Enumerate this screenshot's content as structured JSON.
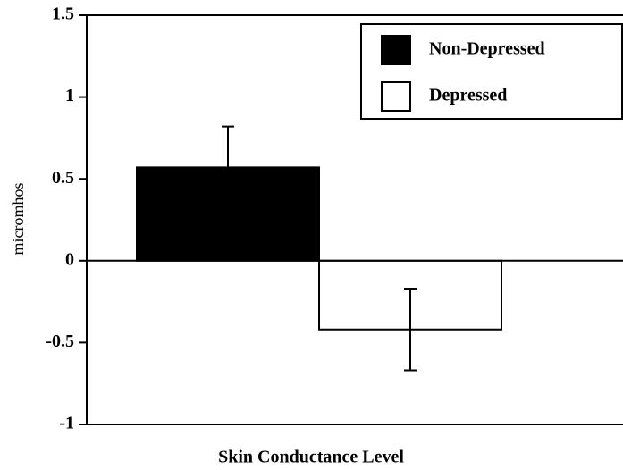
{
  "chart_data": {
    "type": "bar",
    "xlabel": "Skin Conductance Level",
    "ylabel": "micromhos",
    "categories": [
      null
    ],
    "series": [
      {
        "name": "Non-Depressed",
        "color": "#000000",
        "values": [
          0.57
        ],
        "errors": [
          0.25
        ]
      },
      {
        "name": "Depressed",
        "color": "#ffffff",
        "values": [
          -0.42
        ],
        "errors": [
          0.25
        ]
      }
    ],
    "ylim": [
      -1,
      1.5
    ],
    "yticks": [
      -1,
      -0.5,
      0,
      0.5,
      1,
      1.5
    ],
    "legend": "upper right"
  }
}
